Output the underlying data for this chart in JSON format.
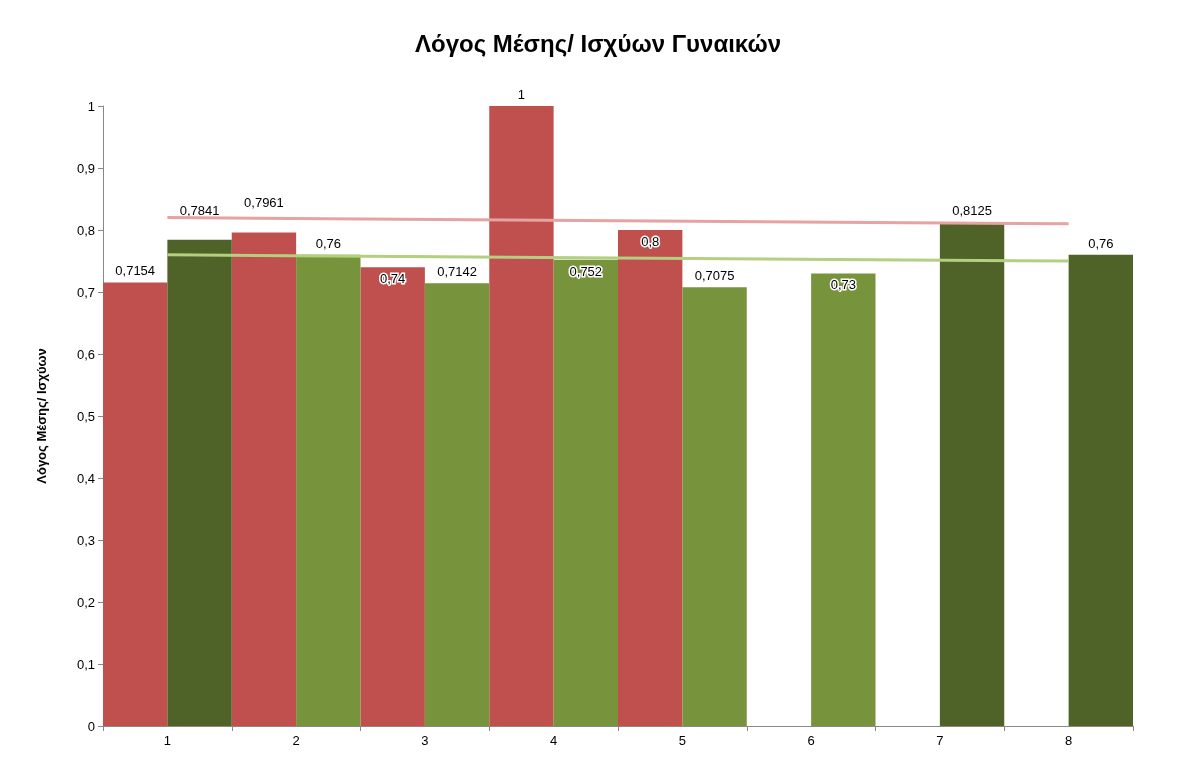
{
  "chart_data": {
    "type": "bar",
    "title": "Λόγος Μέσης/ Ισχύων Γυναικών",
    "ylabel": "Λόγος Μέσης/ Ισχύων",
    "categories": [
      "1",
      "2",
      "3",
      "4",
      "5",
      "6",
      "7",
      "8"
    ],
    "series": [
      {
        "color": "#c0504d",
        "values": [
          0.7154,
          0.7961,
          0.74,
          1,
          0.8,
          null,
          null,
          null
        ],
        "value_labels": [
          "0,7154",
          "0,7961",
          "0,74",
          "1",
          "0,8",
          null,
          null,
          null
        ]
      },
      {
        "colors": [
          "#4f6228",
          "#77933c",
          "#77933c",
          "#77933c",
          "#77933c",
          "#77933c",
          "#4f6228",
          "#4f6228"
        ],
        "values": [
          0.7841,
          0.76,
          0.7142,
          0.752,
          0.7075,
          0.73,
          0.8125,
          0.76
        ],
        "value_labels": [
          "0,7841",
          "0,76",
          "0,7142",
          "0,752",
          "0,7075",
          "0,73",
          "0,8125",
          "0,76"
        ]
      },
      {
        "type": "line",
        "color": "#e6a3a1",
        "x": [
          "1",
          "8"
        ],
        "values": [
          0.82,
          0.81
        ]
      },
      {
        "type": "line",
        "color": "#b3cf80",
        "x": [
          "1",
          "8"
        ],
        "values": [
          0.76,
          0.75
        ]
      }
    ],
    "ylim": [
      0,
      1
    ],
    "yticks": [
      {
        "value": 0,
        "label": "0"
      },
      {
        "value": 0.1,
        "label": "0,1"
      },
      {
        "value": 0.2,
        "label": "0,2"
      },
      {
        "value": 0.3,
        "label": "0,3"
      },
      {
        "value": 0.4,
        "label": "0,4"
      },
      {
        "value": 0.5,
        "label": "0,5"
      },
      {
        "value": 0.6,
        "label": "0,6"
      },
      {
        "value": 0.7,
        "label": "0,7"
      },
      {
        "value": 0.8,
        "label": "0,8"
      },
      {
        "value": 0.9,
        "label": "0,9"
      },
      {
        "value": 1,
        "label": "1"
      }
    ],
    "grid": false
  }
}
